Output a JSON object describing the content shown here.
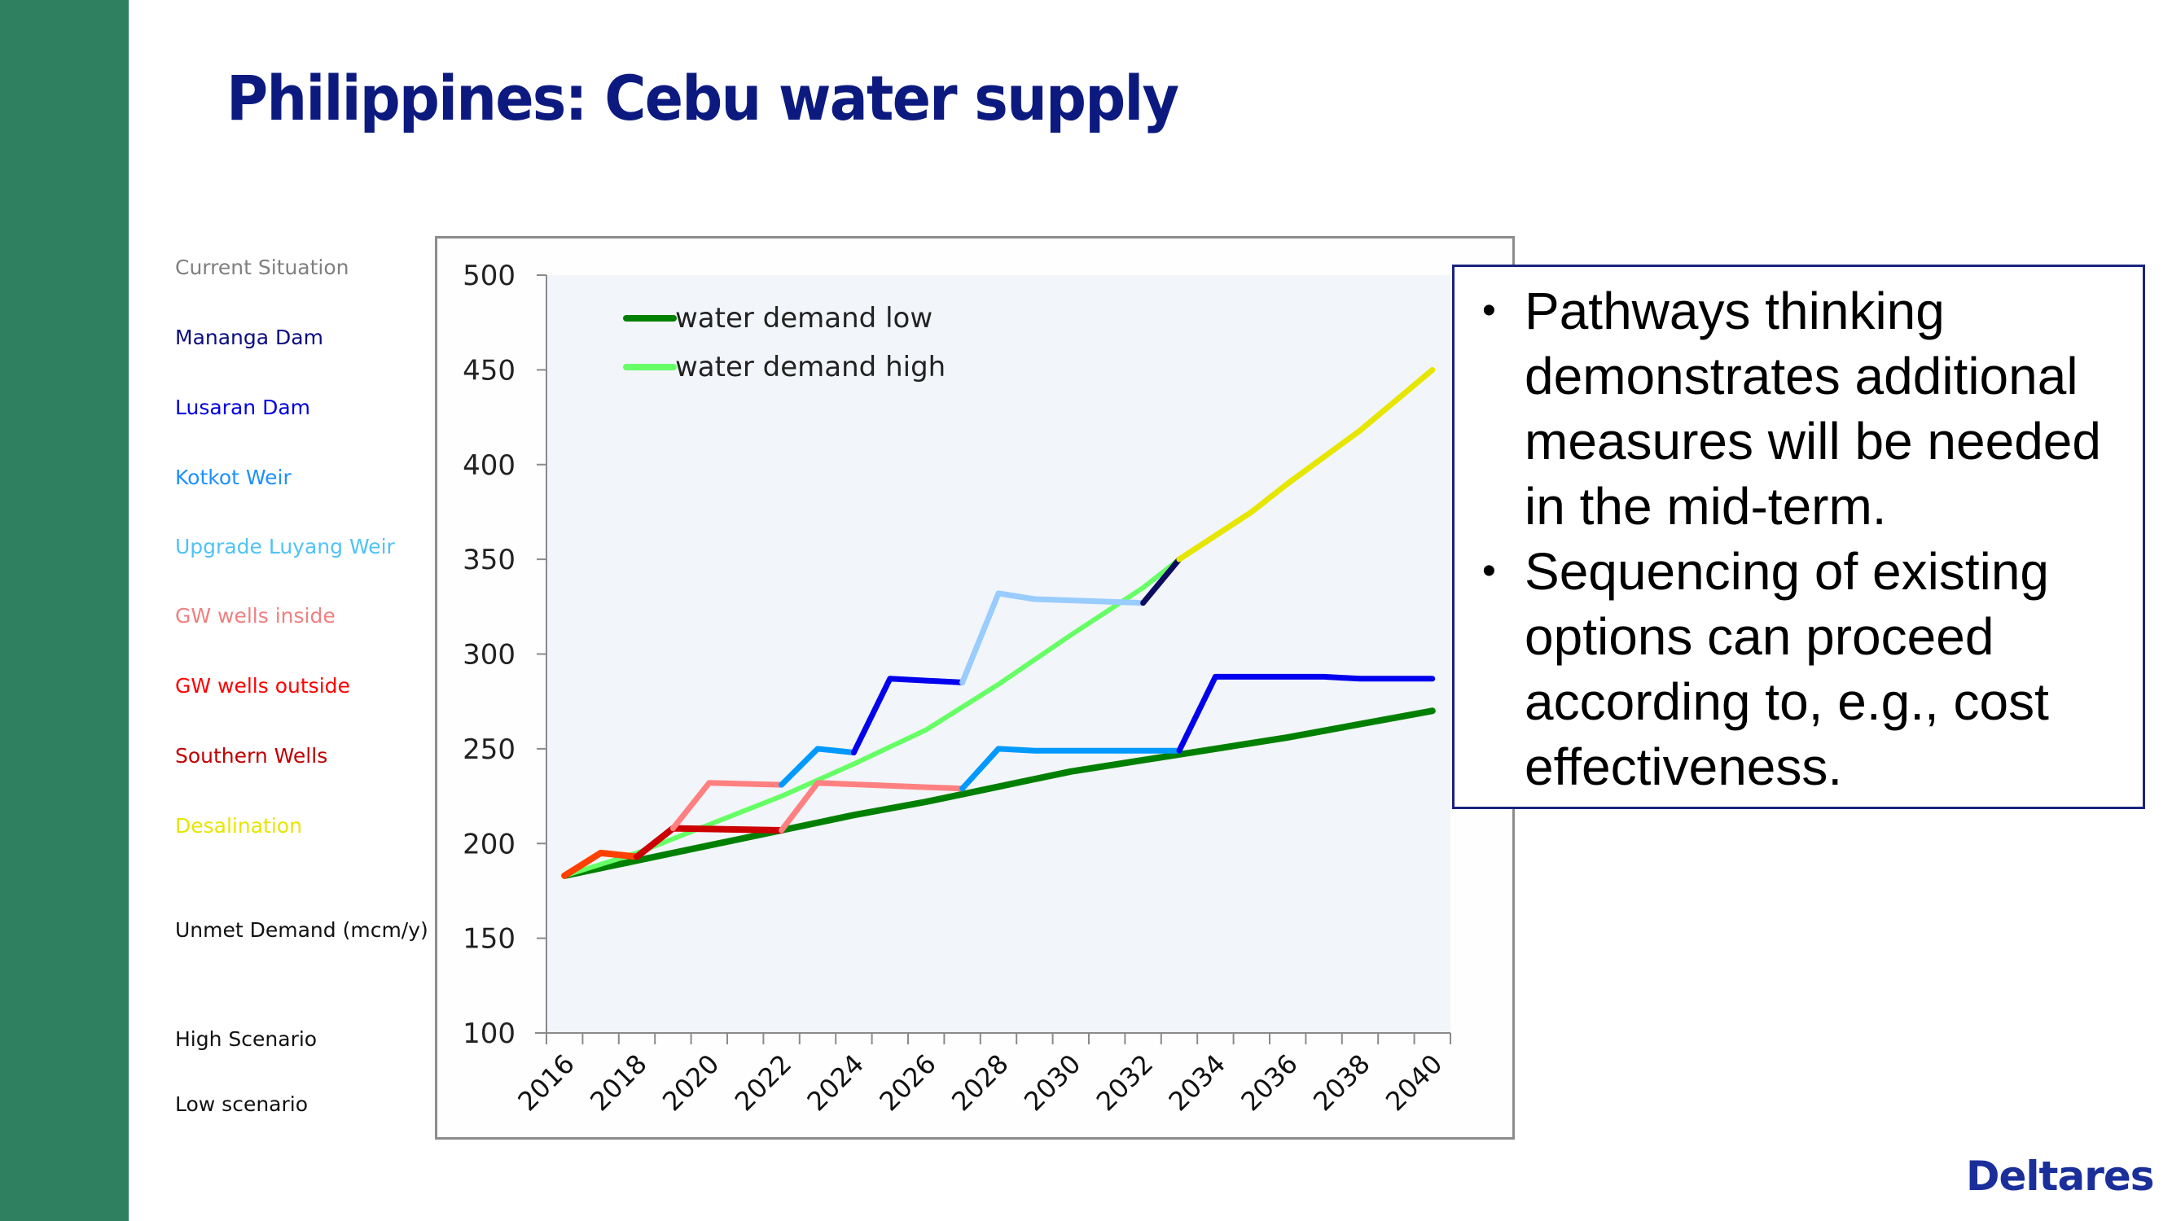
{
  "slide": {
    "title": "Philippines: Cebu water supply",
    "logo": "Deltares",
    "accent_bar_color": "#2e8060",
    "title_color": "#0c1a80"
  },
  "legend_labels": [
    {
      "label": "Current Situation",
      "color": "#7f7f7f"
    },
    {
      "label": "Mananga Dam",
      "color": "#0c0c80"
    },
    {
      "label": "Lusaran Dam",
      "color": "#0000e0"
    },
    {
      "label": "Kotkot Weir",
      "color": "#1e90ff"
    },
    {
      "label": "Upgrade Luyang Weir",
      "color": "#4fc3f7"
    },
    {
      "label": "GW wells inside",
      "color": "#f08080"
    },
    {
      "label": "GW wells outside",
      "color": "#ff0000"
    },
    {
      "label": "Southern Wells",
      "color": "#c00000"
    },
    {
      "label": "Desalination",
      "color": "#e6e600"
    },
    {
      "label": "Unmet Demand (mcm/y)",
      "color": "#111111"
    },
    {
      "label": "High Scenario",
      "color": "#111111"
    },
    {
      "label": "Low scenario",
      "color": "#111111"
    }
  ],
  "bullets": [
    "Pathways thinking demonstrates additional measures will be needed in the mid-term.",
    "Sequencing of existing options can proceed according to, e.g., cost effectiveness."
  ],
  "bullet_lines": [
    [
      "Pathways thinking",
      "demonstrates additional",
      "measures will be needed",
      "in the mid-term."
    ],
    [
      "Sequencing of existing",
      "options can proceed",
      "according to, e.g., cost",
      "effectiveness."
    ]
  ],
  "chart_data": {
    "type": "line",
    "title": "",
    "xlabel": "",
    "ylabel": "Unmet Demand (mcm/y)",
    "ylim": [
      100,
      500
    ],
    "yticks": [
      100,
      150,
      200,
      250,
      300,
      350,
      400,
      450,
      500
    ],
    "xlim": [
      2016,
      2040
    ],
    "xticks": [
      "2016",
      "2018",
      "2020",
      "2022",
      "2024",
      "2026",
      "2028",
      "2030",
      "2032",
      "2034",
      "2036",
      "2038",
      "2040"
    ],
    "grid": false,
    "legend_position": "upper-left-inside",
    "legend": [
      {
        "name": "water demand low",
        "color": "#008000"
      },
      {
        "name": "water demand high",
        "color": "#66ff66"
      }
    ],
    "series": [
      {
        "name": "water demand low",
        "color": "#008000",
        "width": 8,
        "points": [
          [
            2016,
            183
          ],
          [
            2018,
            191
          ],
          [
            2020,
            199
          ],
          [
            2022,
            207
          ],
          [
            2024,
            215
          ],
          [
            2026,
            222
          ],
          [
            2028,
            230
          ],
          [
            2030,
            238
          ],
          [
            2032,
            244
          ],
          [
            2034,
            250
          ],
          [
            2036,
            256
          ],
          [
            2038,
            263
          ],
          [
            2040,
            270
          ]
        ]
      },
      {
        "name": "water demand high",
        "color": "#66ff66",
        "width": 6,
        "points": [
          [
            2016,
            183
          ],
          [
            2018,
            195
          ],
          [
            2020,
            210
          ],
          [
            2022,
            225
          ],
          [
            2024,
            242
          ],
          [
            2026,
            260
          ],
          [
            2028,
            284
          ],
          [
            2030,
            310
          ],
          [
            2032,
            335
          ],
          [
            2033,
            350
          ]
        ]
      },
      {
        "name": "GW wells outside",
        "color": "#ff4000",
        "width": 8,
        "points": [
          [
            2016,
            183
          ],
          [
            2017,
            195
          ],
          [
            2018,
            193
          ]
        ]
      },
      {
        "name": "Southern Wells",
        "color": "#cc0000",
        "width": 8,
        "points": [
          [
            2018,
            193
          ],
          [
            2019,
            208
          ],
          [
            2022,
            207
          ]
        ]
      },
      {
        "name": "GW wells inside (high)",
        "color": "#ff8080",
        "width": 7,
        "points": [
          [
            2019,
            208
          ],
          [
            2020,
            232
          ],
          [
            2022,
            231
          ]
        ]
      },
      {
        "name": "GW wells inside (low)",
        "color": "#ff8080",
        "width": 7,
        "points": [
          [
            2022,
            207
          ],
          [
            2023,
            232
          ],
          [
            2027,
            229
          ]
        ]
      },
      {
        "name": "Kotkot Weir (high)",
        "color": "#0099ff",
        "width": 7,
        "points": [
          [
            2022,
            231
          ],
          [
            2023,
            250
          ],
          [
            2024,
            248
          ]
        ]
      },
      {
        "name": "Kotkot Weir (low)",
        "color": "#0099ff",
        "width": 7,
        "points": [
          [
            2027,
            229
          ],
          [
            2028,
            250
          ],
          [
            2029,
            249
          ],
          [
            2033,
            249
          ]
        ]
      },
      {
        "name": "Lusaran Dam (high)",
        "color": "#0000ee",
        "width": 7,
        "points": [
          [
            2024,
            248
          ],
          [
            2025,
            287
          ],
          [
            2027,
            285
          ]
        ]
      },
      {
        "name": "Lusaran Dam (low)",
        "color": "#0000ee",
        "width": 7,
        "points": [
          [
            2033,
            249
          ],
          [
            2034,
            288
          ],
          [
            2037,
            288
          ],
          [
            2038,
            287
          ],
          [
            2040,
            287
          ]
        ]
      },
      {
        "name": "Upgrade Luyang Weir",
        "color": "#99ccff",
        "width": 7,
        "points": [
          [
            2027,
            285
          ],
          [
            2028,
            332
          ],
          [
            2029,
            329
          ],
          [
            2032,
            327
          ]
        ]
      },
      {
        "name": "Mananga Dam",
        "color": "#0c0c60",
        "width": 7,
        "points": [
          [
            2032,
            327
          ],
          [
            2033,
            350
          ]
        ]
      },
      {
        "name": "Desalination",
        "color": "#e6e600",
        "width": 7,
        "points": [
          [
            2033,
            350
          ],
          [
            2035,
            375
          ],
          [
            2036,
            390
          ],
          [
            2038,
            418
          ],
          [
            2040,
            450
          ]
        ]
      }
    ]
  }
}
